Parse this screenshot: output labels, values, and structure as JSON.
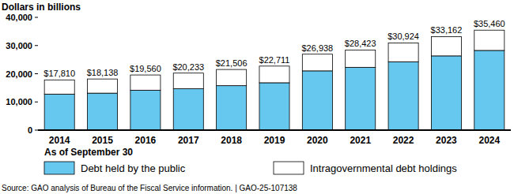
{
  "chart_data": {
    "type": "bar",
    "stacked": true,
    "title": "Dollars in billions",
    "x_label": "As of September 30",
    "source": "Source: GAO analysis of Bureau of the Fiscal Service information.  |  GAO-25-107138",
    "categories": [
      "2014",
      "2015",
      "2016",
      "2017",
      "2018",
      "2019",
      "2020",
      "2021",
      "2022",
      "2023",
      "2024"
    ],
    "series": [
      {
        "name": "Debt held by the public",
        "color": "#66c7ef",
        "values": [
          12779,
          13117,
          14168,
          14673,
          15761,
          16801,
          21017,
          22282,
          24256,
          26330,
          28271
        ]
      },
      {
        "name": "Intragovernmental debt holdings",
        "color": "#ffffff",
        "values": [
          5031,
          5021,
          5392,
          5560,
          5745,
          5910,
          5921,
          6141,
          6668,
          6832,
          7189
        ]
      }
    ],
    "annotations": [
      "$17,810",
      "$18,138",
      "$19,560",
      "$20,233",
      "$21,506",
      "$22,711",
      "$26,938",
      "$28,423",
      "$30,924",
      "$33,162",
      "$35,460"
    ],
    "ylim": [
      0,
      40000
    ],
    "yticks": [
      0,
      {
        "value": 10000,
        "label": "10,000"
      },
      {
        "value": 20000,
        "label": "20,000"
      },
      {
        "value": 30000,
        "label": "30,000"
      },
      {
        "value": 40000,
        "label": "40,000"
      }
    ],
    "grid": false,
    "legend": "bottom"
  }
}
